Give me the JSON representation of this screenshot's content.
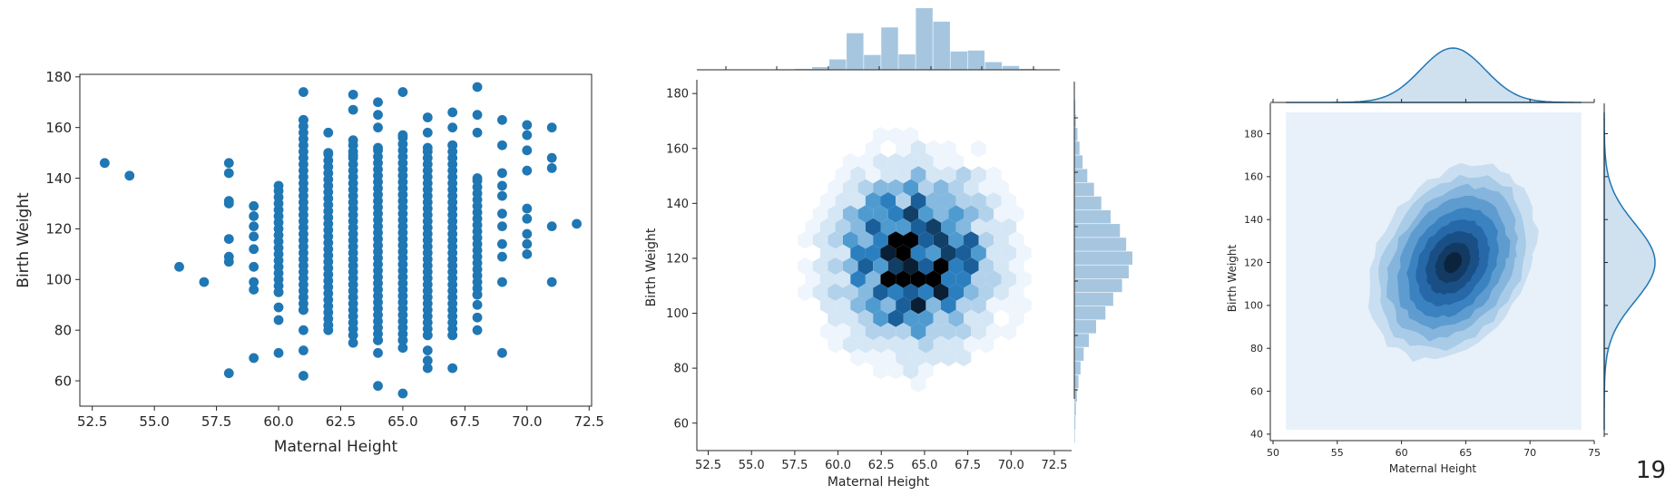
{
  "page": {
    "slide_number": "19"
  },
  "colors": {
    "primary_blue": "#1f77b4",
    "hist_blue": "#a6c6e0",
    "kde_light": "#e8f1fa"
  },
  "chart_data": [
    {
      "type": "scatter",
      "xlabel": "Maternal Height",
      "ylabel": "Birth Weight",
      "xlim": [
        52,
        72.6
      ],
      "ylim": [
        50,
        181
      ],
      "xticks": [
        "52.5",
        "55.0",
        "57.5",
        "60.0",
        "62.5",
        "65.0",
        "67.5",
        "70.0",
        "72.5"
      ],
      "yticks": [
        "60",
        "80",
        "100",
        "120",
        "140",
        "160",
        "180"
      ],
      "grid": false,
      "points": [
        [
          53,
          146
        ],
        [
          54,
          141
        ],
        [
          56,
          105
        ],
        [
          57,
          99
        ],
        [
          58,
          63
        ],
        [
          58,
          107
        ],
        [
          58,
          109
        ],
        [
          58,
          116
        ],
        [
          58,
          130
        ],
        [
          58,
          131
        ],
        [
          58,
          142
        ],
        [
          58,
          146
        ],
        [
          59,
          69
        ],
        [
          59,
          96
        ],
        [
          59,
          99
        ],
        [
          59,
          105
        ],
        [
          59,
          112
        ],
        [
          59,
          117
        ],
        [
          59,
          121
        ],
        [
          59,
          125
        ],
        [
          59,
          129
        ],
        [
          60,
          71
        ],
        [
          60,
          84
        ],
        [
          60,
          89
        ],
        [
          60,
          95
        ],
        [
          60,
          137
        ],
        [
          61,
          62
        ],
        [
          61,
          72
        ],
        [
          61,
          80
        ],
        [
          61,
          88
        ],
        [
          61,
          163
        ],
        [
          61,
          174
        ],
        [
          62,
          80
        ],
        [
          62,
          82
        ],
        [
          62,
          150
        ],
        [
          62,
          158
        ],
        [
          63,
          75
        ],
        [
          63,
          149
        ],
        [
          63,
          155
        ],
        [
          63,
          167
        ],
        [
          63,
          173
        ],
        [
          64,
          58
        ],
        [
          64,
          71
        ],
        [
          64,
          76
        ],
        [
          64,
          152
        ],
        [
          64,
          160
        ],
        [
          64,
          165
        ],
        [
          64,
          170
        ],
        [
          65,
          55
        ],
        [
          65,
          73
        ],
        [
          65,
          76
        ],
        [
          65,
          157
        ],
        [
          65,
          174
        ],
        [
          66,
          65
        ],
        [
          66,
          68
        ],
        [
          66,
          72
        ],
        [
          66,
          78
        ],
        [
          66,
          152
        ],
        [
          66,
          158
        ],
        [
          66,
          164
        ],
        [
          67,
          65
        ],
        [
          67,
          78
        ],
        [
          67,
          153
        ],
        [
          67,
          160
        ],
        [
          67,
          166
        ],
        [
          68,
          80
        ],
        [
          68,
          85
        ],
        [
          68,
          90
        ],
        [
          68,
          94
        ],
        [
          68,
          140
        ],
        [
          68,
          158
        ],
        [
          68,
          165
        ],
        [
          68,
          176
        ],
        [
          69,
          71
        ],
        [
          69,
          99
        ],
        [
          69,
          109
        ],
        [
          69,
          114
        ],
        [
          69,
          121
        ],
        [
          69,
          126
        ],
        [
          69,
          133
        ],
        [
          69,
          137
        ],
        [
          69,
          142
        ],
        [
          69,
          153
        ],
        [
          69,
          163
        ],
        [
          70,
          110
        ],
        [
          70,
          114
        ],
        [
          70,
          118
        ],
        [
          70,
          124
        ],
        [
          70,
          128
        ],
        [
          70,
          143
        ],
        [
          70,
          151
        ],
        [
          70,
          157
        ],
        [
          70,
          161
        ],
        [
          71,
          99
        ],
        [
          71,
          121
        ],
        [
          71,
          144
        ],
        [
          71,
          148
        ],
        [
          71,
          160
        ],
        [
          72,
          122
        ]
      ],
      "dense_columns": [
        {
          "x": 60,
          "ymin": 95,
          "ymax": 137
        },
        {
          "x": 61,
          "ymin": 88,
          "ymax": 163
        },
        {
          "x": 62,
          "ymin": 82,
          "ymax": 150
        },
        {
          "x": 63,
          "ymin": 78,
          "ymax": 155
        },
        {
          "x": 64,
          "ymin": 76,
          "ymax": 152
        },
        {
          "x": 65,
          "ymin": 76,
          "ymax": 157
        },
        {
          "x": 66,
          "ymin": 78,
          "ymax": 152
        },
        {
          "x": 67,
          "ymin": 78,
          "ymax": 153
        },
        {
          "x": 68,
          "ymin": 94,
          "ymax": 140
        }
      ]
    },
    {
      "type": "heatmap",
      "subtype": "hexbin-joint",
      "xlabel": "Maternal Height",
      "ylabel": "Birth Weight",
      "xlim": [
        52,
        73.5
      ],
      "ylim": [
        50,
        185
      ],
      "xticks": [
        "52.5",
        "55.0",
        "57.5",
        "60.0",
        "62.5",
        "65.0",
        "67.5",
        "70.0",
        "72.5"
      ],
      "yticks": [
        "60",
        "80",
        "100",
        "120",
        "140",
        "160",
        "180"
      ],
      "grid": false,
      "marginal_x_hist": {
        "bins": [
          53,
          55,
          57,
          58,
          59,
          60,
          61,
          62,
          63,
          64,
          65,
          66,
          67,
          68,
          69,
          70,
          71,
          72
        ],
        "counts": [
          2,
          1,
          3,
          5,
          14,
          54,
          190,
          77,
          220,
          80,
          320,
          250,
          95,
          100,
          40,
          20,
          5,
          2
        ]
      },
      "marginal_y_hist": {
        "bins": [
          55,
          60,
          65,
          70,
          75,
          80,
          85,
          90,
          95,
          100,
          105,
          110,
          115,
          120,
          125,
          130,
          135,
          140,
          145,
          150,
          155,
          160,
          165,
          170,
          175
        ],
        "counts": [
          1,
          2,
          3,
          5,
          8,
          12,
          18,
          28,
          42,
          60,
          75,
          92,
          105,
          112,
          100,
          88,
          70,
          52,
          38,
          25,
          16,
          10,
          6,
          3,
          2
        ]
      }
    },
    {
      "type": "heatmap",
      "subtype": "kde-joint",
      "xlabel": "Maternal Height",
      "ylabel": "Birth Weight",
      "xlim": [
        50,
        75
      ],
      "ylim": [
        37,
        195
      ],
      "xticks": [
        "50",
        "55",
        "60",
        "65",
        "70",
        "75"
      ],
      "yticks": [
        "40",
        "60",
        "80",
        "100",
        "120",
        "140",
        "160",
        "180"
      ],
      "grid": false,
      "density_center": [
        64,
        120
      ],
      "density_sd": [
        2.5,
        18
      ],
      "fill_region": {
        "x": [
          51,
          74
        ],
        "y": [
          42,
          190
        ]
      }
    }
  ]
}
